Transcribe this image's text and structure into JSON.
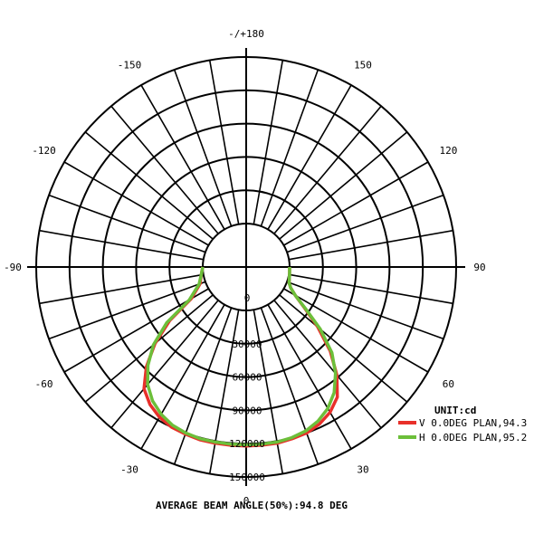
{
  "chart_data": {
    "type": "polar-line",
    "unit_label": "UNIT:cd",
    "footer": "AVERAGE BEAM ANGLE(50%):94.8 DEG",
    "radial_max": 150000,
    "radial_ticks": [
      {
        "value": 0,
        "label": "0"
      },
      {
        "value": 30000,
        "label": "30000"
      },
      {
        "value": 60000,
        "label": "60000"
      },
      {
        "value": 90000,
        "label": "90000"
      },
      {
        "value": 120000,
        "label": "120000"
      },
      {
        "value": 150000,
        "label": "150000"
      }
    ],
    "angle_ticks": [
      {
        "angle": 180,
        "label": "-/+180"
      },
      {
        "angle": 150,
        "label": "150"
      },
      {
        "angle": 120,
        "label": "120"
      },
      {
        "angle": 90,
        "label": "90"
      },
      {
        "angle": 60,
        "label": "60"
      },
      {
        "angle": 30,
        "label": "30"
      },
      {
        "angle": 0,
        "label": "0"
      },
      {
        "angle": -30,
        "label": "-30"
      },
      {
        "angle": -60,
        "label": "-60"
      },
      {
        "angle": -90,
        "label": "-90"
      },
      {
        "angle": -120,
        "label": "-120"
      },
      {
        "angle": -150,
        "label": "-150"
      }
    ],
    "series": [
      {
        "name": "V 0.0DEG PLAN,94.3",
        "color": "#e8302a",
        "angles": [
          -90,
          -80,
          -70,
          -60,
          -55,
          -50,
          -45,
          -40,
          -35,
          -30,
          -25,
          -20,
          -15,
          -10,
          -5,
          0,
          5,
          10,
          15,
          20,
          25,
          30,
          35,
          40,
          45,
          50,
          55,
          60,
          65,
          70,
          80,
          90
        ],
        "values": [
          0,
          2000,
          5000,
          18000,
          45000,
          68000,
          88000,
          104000,
          112000,
          117000,
          120000,
          121000,
          122000,
          122000,
          122000,
          122000,
          122000,
          122000,
          121000,
          120000,
          117000,
          112000,
          104000,
          88000,
          68000,
          45000,
          25000,
          12000,
          5000,
          2000,
          500,
          0
        ]
      },
      {
        "name": "H 0.0DEG PLAN,95.2",
        "color": "#6cbf3a",
        "angles": [
          -90,
          -80,
          -70,
          -60,
          -55,
          -50,
          -45,
          -40,
          -35,
          -30,
          -25,
          -20,
          -15,
          -10,
          -5,
          0,
          5,
          10,
          15,
          20,
          25,
          30,
          35,
          40,
          45,
          50,
          55,
          60,
          65,
          70,
          80,
          90
        ],
        "values": [
          0,
          2000,
          6000,
          20000,
          48000,
          70000,
          86000,
          99000,
          108000,
          114000,
          118000,
          120000,
          121000,
          121000,
          121000,
          121000,
          121000,
          121000,
          120000,
          118000,
          114000,
          108000,
          99000,
          86000,
          70000,
          48000,
          26000,
          12000,
          5000,
          2000,
          500,
          0
        ]
      }
    ]
  }
}
